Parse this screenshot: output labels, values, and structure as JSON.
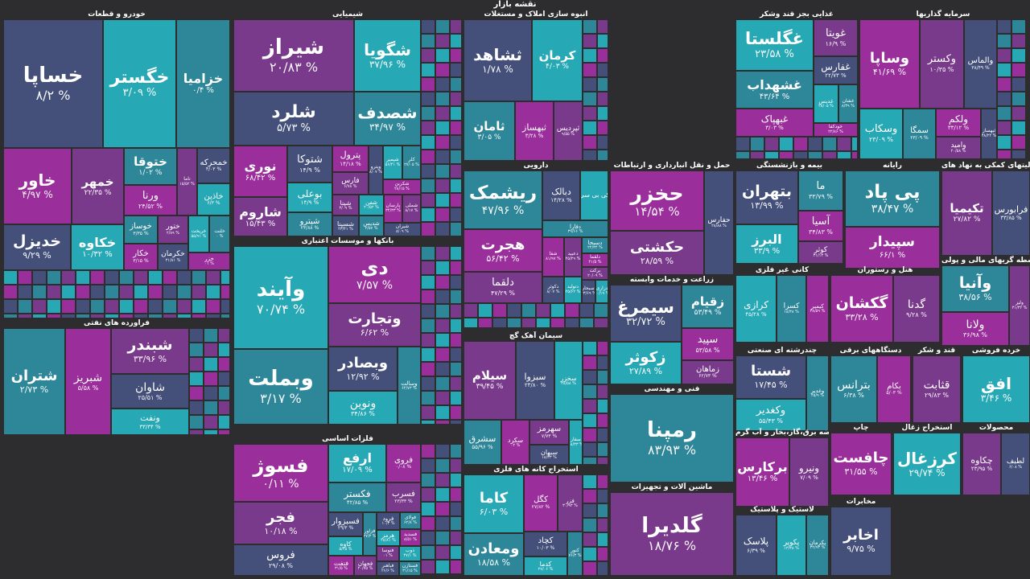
{
  "title": "نقشه بازار",
  "colors": {
    "navy": "#44507a",
    "teal": "#2e8699",
    "purple": "#7a3a8c",
    "cyan": "#27a9b5",
    "magenta": "#9a2f9c",
    "bg": "#2d2d2f"
  },
  "chart_data": {
    "type": "treemap",
    "title": "نقشه بازار",
    "sectors": [
      {
        "name": "خودرو و قطعات",
        "stocks": [
          {
            "name": "خساپا",
            "value": "۸/۲ %"
          },
          {
            "name": "خگستر",
            "value": "۳/۰۹ %"
          },
          {
            "name": "خزامیا",
            "value": "۰/۴ %"
          },
          {
            "name": "خاور",
            "value": "۴/۹۷ %"
          },
          {
            "name": "خمهر",
            "value": "۲۲/۳۵ %"
          },
          {
            "name": "خدیزل",
            "value": "۹/۲۹ %"
          },
          {
            "name": "خکاوه",
            "value": "۱۰/۳۲ %"
          },
          {
            "name": "ختوقا",
            "value": "۱/۰۲ %"
          },
          {
            "name": "ورنا",
            "value": "۲۴/۵۲ %"
          },
          {
            "name": "ناما",
            "value": "۱۵/۵۲ %"
          },
          {
            "name": "خمحرکه",
            "value": "۴/۰۳ %"
          },
          {
            "name": "خاذین",
            "value": "۶/۳ %"
          },
          {
            "name": "خوساز",
            "value": "۳/۳۵ %"
          },
          {
            "name": "خکار",
            "value": "۳/۱۵ %"
          },
          {
            "name": "ختور",
            "value": "۲/۸۹ %"
          },
          {
            "name": "خکرمان",
            "value": "۳۱/۸۱ %"
          },
          {
            "name": "خریخت",
            "value": "۵۵/۹۱ %"
          },
          {
            "name": "خلنت",
            "value": "۰ %"
          },
          {
            "name": "خزر",
            "value": "۰۱ %"
          }
        ]
      },
      {
        "name": "فراورده های نفتی",
        "stocks": [
          {
            "name": "شتران",
            "value": "۲/۷۳ %"
          },
          {
            "name": "شبریز",
            "value": "۵/۵۸ %"
          },
          {
            "name": "شبندر",
            "value": "۳۳/۹۶ %"
          },
          {
            "name": "شاوان",
            "value": "۲۵/۵۱ %"
          },
          {
            "name": "ونفت",
            "value": "۳۳/۳۴ %"
          }
        ]
      },
      {
        "name": "شیمیایی",
        "stocks": [
          {
            "name": "شیراز",
            "value": "۲۰/۸۳ %"
          },
          {
            "name": "شلرد",
            "value": "۵/۷۳ %"
          },
          {
            "name": "شگویا",
            "value": "۳۷/۹۶ %"
          },
          {
            "name": "شصدف",
            "value": "۳۴/۹۷ %"
          },
          {
            "name": "نوری",
            "value": "۶۸/۴۲ %"
          },
          {
            "name": "شاروم",
            "value": "۱۵/۴۳ %"
          },
          {
            "name": "شتوکا",
            "value": "۱۴/۹ %"
          },
          {
            "name": "بوعلی",
            "value": "۱۴/۹ %"
          },
          {
            "name": "شپترو",
            "value": "۲۳/۸۸ %"
          },
          {
            "name": "پترول",
            "value": "۱۴/۱۸ %"
          },
          {
            "name": "فارس",
            "value": "۶/۷۸ %"
          },
          {
            "name": "وپترو",
            "value": "۸/۰۷ %"
          },
          {
            "name": "شپمیر",
            "value": "۵۶/۴۱ %"
          },
          {
            "name": "کلر",
            "value": "۲۷/۰۵ %"
          },
          {
            "name": "شکربن",
            "value": "۲۸/۱۵ %"
          },
          {
            "name": "شپنا",
            "value": "۳/۰۹ %"
          },
          {
            "name": "شسپنا",
            "value": "۴۳/۴۱ %"
          },
          {
            "name": "شفن",
            "value": "۲۰/۵۲ %"
          },
          {
            "name": "شدیس",
            "value": "۲/۵۷ %"
          },
          {
            "name": "پارسان",
            "value": "۳۴/۳۳ %"
          },
          {
            "name": "شملی",
            "value": "۸/۱۷ %"
          },
          {
            "name": "شیران",
            "value": "۸/۰۹ %"
          }
        ]
      },
      {
        "name": "بانکها و موسسات اعتباری",
        "stocks": [
          {
            "name": "وآیند",
            "value": "۷۰/۷۴ %"
          },
          {
            "name": "وبملت",
            "value": "۳/۱۷ %"
          },
          {
            "name": "دی",
            "value": "۷/۵۷ %"
          },
          {
            "name": "وتجارت",
            "value": "۶/۶۲ %"
          },
          {
            "name": "وبصادر",
            "value": "۱۲/۹۲ %"
          },
          {
            "name": "ونوین",
            "value": "۳۴/۸۶ %"
          },
          {
            "name": "وسالت",
            "value": "۶۴/۷۳ %"
          }
        ]
      },
      {
        "name": "فلزات اساسی",
        "stocks": [
          {
            "name": "فسوژ",
            "value": "۰/۱۱ %"
          },
          {
            "name": "فجر",
            "value": "۱۰/۱۸ %"
          },
          {
            "name": "فروس",
            "value": "۲۹/۰۸ %"
          },
          {
            "name": "ارفع",
            "value": "۱۷/۰۹ %"
          },
          {
            "name": "فکستر",
            "value": "۴۲/۸۵ %"
          },
          {
            "name": "فروی",
            "value": "۰/۰۸ %"
          },
          {
            "name": "فسرب",
            "value": "۲۳/۳۳ %"
          },
          {
            "name": "فسبزوار",
            "value": "۲۹/۳ %"
          },
          {
            "name": "کاوه",
            "value": "۵/۲۵ %"
          },
          {
            "name": "فزاور",
            "value": "۲۷/۳ %"
          },
          {
            "name": "فنفت",
            "value": "۳۱/۵ %"
          },
          {
            "name": "فجهان",
            "value": "۲۰/۷۵ %"
          },
          {
            "name": "فرود",
            "value": "۱۰/۳ %"
          },
          {
            "name": "هرمز",
            "value": "۲۸/۸۱ %"
          },
          {
            "name": "فولای",
            "value": "۶۲/۸ %"
          },
          {
            "name": "فسدید",
            "value": "۸/۵۱ %"
          },
          {
            "name": "فنوسا",
            "value": "۰۱ %"
          },
          {
            "name": "فباهنر",
            "value": "۲۶/۶ %"
          },
          {
            "name": "ذوب",
            "value": "۴۷/۱ %"
          },
          {
            "name": "فستازن",
            "value": "۳۱/۱۵ %"
          }
        ]
      },
      {
        "name": "انبوه سازی املاک و مستغلات",
        "stocks": [
          {
            "name": "ثشاهد",
            "value": "۱/۷۸ %"
          },
          {
            "name": "کرمان",
            "value": "۴/۰۳ %"
          },
          {
            "name": "ثامان",
            "value": "۳/۰۵ %"
          },
          {
            "name": "ثبهساز",
            "value": "۳/۲۸ %"
          },
          {
            "name": "ثپردیس",
            "value": "۹/۵۵ %"
          }
        ]
      },
      {
        "name": "دارویی",
        "stocks": [
          {
            "name": "ریشمک",
            "value": "۴۷/۹۶ %"
          },
          {
            "name": "هجرت",
            "value": "۵۶/۴۲ %"
          },
          {
            "name": "دلقما",
            "value": "۴۷/۲۹ %"
          },
          {
            "name": "دبالک",
            "value": "۱۴/۲۸ %"
          },
          {
            "name": "کی بی سی",
            "value": ""
          },
          {
            "name": "دفارا",
            "value": "۳۹/۶۶ %"
          },
          {
            "name": "شفا",
            "value": "۸۱/۹۷ %"
          },
          {
            "name": "دعبید",
            "value": "۴۵/۲۹ %"
          },
          {
            "name": "دکوثر",
            "value": "۸/۰۷ %"
          },
          {
            "name": "دتولید",
            "value": "۲۵/۶۲ %"
          },
          {
            "name": "دسبحا",
            "value": "۲۴/۳۴ %"
          },
          {
            "name": "دلقما",
            "value": "۴۱/۵ %"
          },
          {
            "name": "برکت",
            "value": "۲۰/۰۹ %"
          },
          {
            "name": "دسبحان",
            "value": "۲۳/۶۹ %"
          },
          {
            "name": "دزاری",
            "value": "۲۰/۱۹ %"
          }
        ]
      },
      {
        "name": "سیمان آهک گچ",
        "stocks": [
          {
            "name": "سیلام",
            "value": "۳۹/۴۵ %"
          },
          {
            "name": "سبزوا",
            "value": "۲۳/۸۰ %"
          },
          {
            "name": "سخزر",
            "value": "۲۸/۵۸ %"
          },
          {
            "name": "سشرق",
            "value": "۵۵/۹۶ %"
          },
          {
            "name": "سکرد",
            "value": "۰۲ %"
          },
          {
            "name": "سهرمز",
            "value": "۷/۷۳ %"
          },
          {
            "name": "سبهان",
            "value": "۱۸/۳۳ %"
          },
          {
            "name": "سفار",
            "value": "۱۸/۳۳ %"
          }
        ]
      },
      {
        "name": "استخراج کانه های فلزی",
        "stocks": [
          {
            "name": "کاما",
            "value": "۶/۰۳ %"
          },
          {
            "name": "ومعادن",
            "value": "۱۸/۵۸ %"
          },
          {
            "name": "کگل",
            "value": "۲۷/۸۲ %"
          },
          {
            "name": "فزر",
            "value": "۳۰/۹۳ %"
          },
          {
            "name": "کچاد",
            "value": "۱۰/۰۳ %"
          },
          {
            "name": "کدما",
            "value": "۲۷/۰۶ %"
          },
          {
            "name": "کنور",
            "value": "۷۶/۳ %"
          }
        ]
      },
      {
        "name": "حمل و نقل انبارداری و ارتباطات",
        "stocks": [
          {
            "name": "حخزر",
            "value": "۱۴/۵۴ %"
          },
          {
            "name": "حکشتی",
            "value": "۲۸/۵۹ %"
          },
          {
            "name": "حفارس",
            "value": "۲۸/۸۸ %"
          }
        ]
      },
      {
        "name": "زراعت و خدمات وابسته",
        "stocks": [
          {
            "name": "سیمرغ",
            "value": "۳۲/۷۲ %"
          },
          {
            "name": "زکوثر",
            "value": "۲۷/۸۹ %"
          },
          {
            "name": "زقیام",
            "value": "۵۳/۴۹ %"
          },
          {
            "name": "سپید",
            "value": "۵۳/۵۸ %"
          },
          {
            "name": "زماهان",
            "value": "۶۲/۷۳ %"
          }
        ]
      },
      {
        "name": "فنی و مهندسی",
        "stocks": [
          {
            "name": "رمپنا",
            "value": "۸۳/۹۳ %"
          }
        ]
      },
      {
        "name": "ماشین آلات و تجهیزات",
        "stocks": [
          {
            "name": "گلدیرا",
            "value": "۱۸/۷۶ %"
          }
        ]
      },
      {
        "name": "غذایی بجز قند وشکر",
        "stocks": [
          {
            "name": "غگلستا",
            "value": "۲۳/۵۸ %"
          },
          {
            "name": "غشهداب",
            "value": "۴۳/۶۴ %"
          },
          {
            "name": "غبهپاک",
            "value": "۳/۰۳ %"
          },
          {
            "name": "غویتا",
            "value": "۱۶/۹ %"
          },
          {
            "name": "غفارس",
            "value": "۲۲/۷۳ %"
          },
          {
            "name": "غدیس",
            "value": "۲۸/۰۵ %"
          },
          {
            "name": "غشان",
            "value": "۸/۳۹ %"
          },
          {
            "name": "خودکفا",
            "value": "۲۲/۸۶ %"
          }
        ]
      },
      {
        "name": "سرمایه گذاریها",
        "stocks": [
          {
            "name": "وساپا",
            "value": "۴۱/۶۹ %"
          },
          {
            "name": "وکستر",
            "value": "۱۰/۳۵ %"
          },
          {
            "name": "والماس",
            "value": "۳۸/۴۹ %"
          },
          {
            "name": "وسکاب",
            "value": "۲۳/۰۹ %"
          },
          {
            "name": "سمگا",
            "value": "۲۳/۰۹ %"
          },
          {
            "name": "ولکم",
            "value": "۳۳/۱۲ %"
          },
          {
            "name": "وامید",
            "value": "۲۰/۵۸ %"
          },
          {
            "name": "ثبهساز",
            "value": "۳۸/۲۴ %"
          }
        ]
      },
      {
        "name": "بیمه و بازنشستگی",
        "stocks": [
          {
            "name": "بتهران",
            "value": "۱۳/۹۹ %"
          },
          {
            "name": "البرز",
            "value": "۳۳/۹ %"
          },
          {
            "name": "ما",
            "value": "۳۳/۷۹ %"
          },
          {
            "name": "آسیا",
            "value": "۳۴/۸۳ %"
          },
          {
            "name": "کوثر",
            "value": "۳۱/۱۳ %"
          }
        ]
      },
      {
        "name": "رایانه",
        "stocks": [
          {
            "name": "پی پاد",
            "value": "۳۸/۴۷ %"
          },
          {
            "name": "سپیدار",
            "value": "۶۶/۱ %"
          }
        ]
      },
      {
        "name": "فعالیتهای کمکی به نهاد های",
        "stocks": [
          {
            "name": "تکیمیا",
            "value": "۲۷/۸۲ %"
          },
          {
            "name": "فرابورس",
            "value": "۳۳/۸۵ %"
          }
        ]
      },
      {
        "name": "کانی غیر فلزی",
        "stocks": [
          {
            "name": "کرازی",
            "value": "۴۵/۲۸ %"
          },
          {
            "name": "کسرا",
            "value": "۱۸/۳۸ %"
          },
          {
            "name": "کیمیر",
            "value": "۳۸/۵۹ %"
          }
        ]
      },
      {
        "name": "هتل و رستوران",
        "stocks": [
          {
            "name": "گکشان",
            "value": "۳۳/۲۸ %"
          },
          {
            "name": "گدنا",
            "value": "۹/۲۸ %"
          }
        ]
      },
      {
        "name": "چندرشته ای صنعتی",
        "stocks": [
          {
            "name": "شستا",
            "value": "۱۷/۴۵ %"
          },
          {
            "name": "وکغدیر",
            "value": "۵۵/۴۳ %"
          },
          {
            "name": "وغدیر",
            "value": "۴۵/۹ %"
          }
        ]
      },
      {
        "name": "دستگاههای برقی",
        "stocks": [
          {
            "name": "بترانس",
            "value": "۶/۳۸ %"
          },
          {
            "name": "بکام",
            "value": "۵/۰۳ %"
          }
        ]
      },
      {
        "name": "قند و شکر",
        "stocks": [
          {
            "name": "قثابت",
            "value": "۲۹/۸۳ %"
          }
        ]
      },
      {
        "name": "خرده فروشی",
        "stocks": [
          {
            "name": "افق",
            "value": "۳/۴۶ %"
          }
        ]
      },
      {
        "name": "عرضه برق،گاز،بخار و آب گرم",
        "stocks": [
          {
            "name": "برکارس",
            "value": "۱۳/۴۶ %"
          },
          {
            "name": "ونیرو",
            "value": "۷/۰۹ %"
          }
        ]
      },
      {
        "name": "لاستیک و پلاستیک",
        "stocks": [
          {
            "name": "پلاسک",
            "value": "۶/۳۹ %"
          },
          {
            "name": "پکویر",
            "value": "۱۳/۳۸ %"
          },
          {
            "name": "پکرمان",
            "value": "۳۲/۹۳ %"
          }
        ]
      },
      {
        "name": "واسطه گریهای مالی و پولی",
        "stocks": [
          {
            "name": "وآنیا",
            "value": "۳۸/۵۶ %"
          },
          {
            "name": "ولانا",
            "value": "۳۶/۹۸ %"
          },
          {
            "name": "ولیز",
            "value": "۳۱/۳۲ %"
          }
        ]
      },
      {
        "name": "محصولات",
        "stocks": [
          {
            "name": "چکاوه",
            "value": "۲۳/۹۵ %"
          },
          {
            "name": "لطیف",
            "value": "۶/۰۸ %"
          }
        ]
      },
      {
        "name": "استخراج زغال",
        "stocks": [
          {
            "name": "کرزغال",
            "value": "۲۹/۷۴ %"
          }
        ]
      },
      {
        "name": "چاپ",
        "stocks": [
          {
            "name": "چافست",
            "value": "۳۱/۵۵ %"
          }
        ]
      },
      {
        "name": "مخابرات",
        "stocks": [
          {
            "name": "اخابر",
            "value": "۹/۷۵ %"
          }
        ]
      }
    ]
  }
}
